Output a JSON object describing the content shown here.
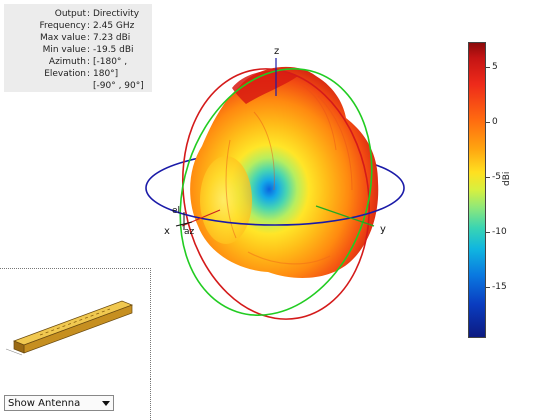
{
  "info": {
    "rows": [
      {
        "key": "Output",
        "value": "Directivity"
      },
      {
        "key": "Frequency",
        "value": "2.45 GHz"
      },
      {
        "key": "Max value",
        "value": "7.23 dBi"
      },
      {
        "key": "Min value",
        "value": "-19.5 dBi"
      },
      {
        "key": "Azimuth",
        "value": "[-180° ,"
      },
      {
        "key": "Elevation",
        "value": "180°]"
      }
    ],
    "continuation": "[-90° , 90°]",
    "separator": ":"
  },
  "axes": {
    "x_label": "x",
    "y_label": "y",
    "z_label": "z",
    "el_label": "el",
    "az_label": "az"
  },
  "colorbar": {
    "unit": "dBi",
    "ticks": [
      "5",
      "0",
      "-5",
      "-10",
      "-15"
    ],
    "max": 7.23,
    "min": -19.5
  },
  "antenna_view": {
    "dropdown_selected": "Show Antenna"
  },
  "colors": {
    "azimuth_circle": "#1a1aa8",
    "elevation_circle_xz": "#d41a1a",
    "elevation_circle_yz": "#22cc22",
    "antenna": "#d6a12a"
  }
}
